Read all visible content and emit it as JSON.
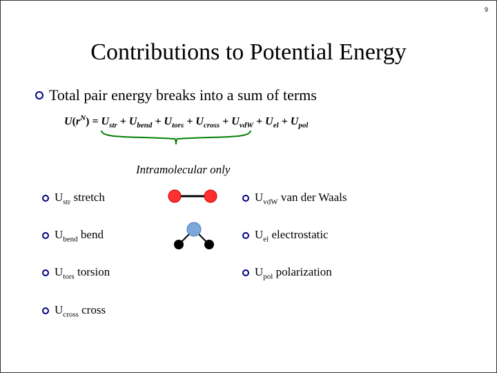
{
  "page_number": "9",
  "title": "Contributions to Potential Energy",
  "intro": "Total pair energy breaks into a sum of terms",
  "equation": {
    "lhs_U": "U",
    "lhs_r": "r",
    "lhs_N": "N",
    "eq": "=",
    "plus": "+",
    "terms": [
      {
        "sym": "U",
        "sub": "str"
      },
      {
        "sym": "U",
        "sub": "bend"
      },
      {
        "sym": "U",
        "sub": "tors"
      },
      {
        "sym": "U",
        "sub": "cross"
      },
      {
        "sym": "U",
        "sub": "vdW"
      },
      {
        "sym": "U",
        "sub": "el"
      },
      {
        "sym": "U",
        "sub": "pol"
      }
    ]
  },
  "brace_label": "Intramolecular only",
  "left_items": [
    {
      "sym": "U",
      "sub": "str",
      "desc": "stretch"
    },
    {
      "sym": "U",
      "sub": "bend",
      "desc": "bend"
    },
    {
      "sym": "U",
      "sub": "tors",
      "desc": "torsion"
    },
    {
      "sym": "U",
      "sub": "cross",
      "desc": "cross"
    }
  ],
  "right_items": [
    {
      "sym": "U",
      "sub": "vdW",
      "desc": "van der Waals"
    },
    {
      "sym": "U",
      "sub": "el",
      "desc": "electrostatic"
    },
    {
      "sym": "U",
      "sub": "pol",
      "desc": "polarization"
    }
  ],
  "colors": {
    "bullet_border": "#000080",
    "brace": "#008000",
    "atom_red": "#cc0000",
    "atom_red_fill": "#ff3030",
    "atom_blue": "#4a7ab8",
    "atom_blue_fill": "#7aa8d8",
    "atom_black": "#000000",
    "bond": "#000000"
  },
  "diagrams": {
    "stretch": {
      "atom_radius": 9,
      "spacing": 52,
      "bond_width": 3
    },
    "bend": {
      "atom_radius_center": 10,
      "atom_radius_side": 7,
      "angle_spread": 60,
      "bond_len": 28,
      "bond_width": 2
    }
  }
}
